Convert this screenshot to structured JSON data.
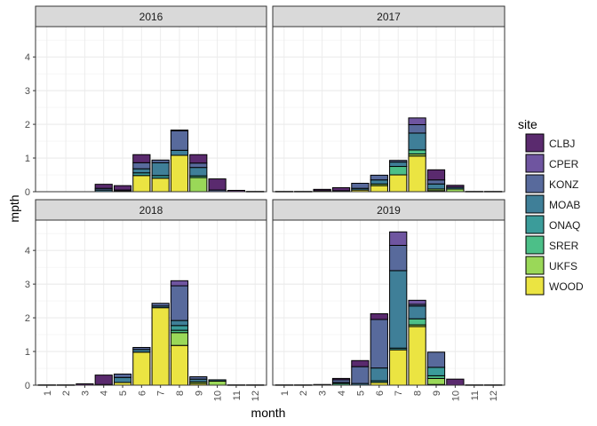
{
  "chart_data": {
    "type": "bar",
    "stacked": true,
    "facet_layout": "2x2",
    "xlabel": "month",
    "ylabel": "mpth",
    "ylim": [
      0,
      4.9
    ],
    "yticks": [
      0,
      1,
      2,
      3,
      4
    ],
    "categories": [
      "1",
      "2",
      "3",
      "4",
      "5",
      "6",
      "7",
      "8",
      "9",
      "10",
      "11",
      "12"
    ],
    "grid": true,
    "legend": {
      "title": "site",
      "position": "right",
      "entries": [
        "CLBJ",
        "CPER",
        "KONZ",
        "MOAB",
        "ONAQ",
        "SRER",
        "UKFS",
        "WOOD"
      ]
    },
    "colors": {
      "CLBJ": "#5a2a6e",
      "CPER": "#6f55a0",
      "KONZ": "#586a9c",
      "MOAB": "#3f7f98",
      "ONAQ": "#3b9c9a",
      "SRER": "#4cbf88",
      "UKFS": "#9ad858",
      "WOOD": "#ebe442"
    },
    "panels": [
      {
        "title": "2016",
        "stacks": {
          "4": {
            "KONZ": 0.05,
            "MOAB": 0.05,
            "CLBJ": 0.12
          },
          "5": {
            "WOOD": 0.02,
            "CPER": 0.03,
            "CLBJ": 0.13
          },
          "6": {
            "WOOD": 0.48,
            "ONAQ": 0.08,
            "MOAB": 0.12,
            "KONZ": 0.18,
            "CLBJ": 0.24
          },
          "7": {
            "WOOD": 0.4,
            "ONAQ": 0.08,
            "MOAB": 0.38,
            "KONZ": 0.08
          },
          "8": {
            "WOOD": 1.08,
            "MOAB": 0.15,
            "KONZ": 0.58,
            "CPER": 0.02
          },
          "9": {
            "UKFS": 0.42,
            "SRER": 0.05,
            "MOAB": 0.25,
            "KONZ": 0.13,
            "CLBJ": 0.25
          },
          "10": {
            "KONZ": 0.05,
            "CLBJ": 0.33
          },
          "11": {
            "CLBJ": 0.04
          },
          "12": {
            "CLBJ": 0.01
          }
        }
      },
      {
        "title": "2017",
        "stacks": {
          "1": {
            "CLBJ": 0.01
          },
          "2": {
            "CLBJ": 0.01
          },
          "3": {
            "WOOD": 0.03,
            "CLBJ": 0.04
          },
          "4": {
            "KONZ": 0.03,
            "CLBJ": 0.09
          },
          "5": {
            "WOOD": 0.05,
            "MOAB": 0.05,
            "KONZ": 0.15
          },
          "6": {
            "WOOD": 0.18,
            "UKFS": 0.05,
            "MOAB": 0.12,
            "KONZ": 0.14
          },
          "7": {
            "WOOD": 0.5,
            "SRER": 0.25,
            "MOAB": 0.13,
            "KONZ": 0.05
          },
          "8": {
            "WOOD": 1.06,
            "UKFS": 0.06,
            "SRER": 0.12,
            "MOAB": 0.5,
            "KONZ": 0.25,
            "CPER": 0.2
          },
          "9": {
            "WOOD": 0.03,
            "UKFS": 0.05,
            "MOAB": 0.15,
            "KONZ": 0.12,
            "CLBJ": 0.3
          },
          "10": {
            "UKFS": 0.08,
            "MOAB": 0.05,
            "CLBJ": 0.06
          },
          "11": {
            "CLBJ": 0.01
          },
          "12": {
            "CLBJ": 0.01
          }
        }
      },
      {
        "title": "2018",
        "stacks": {
          "1": {
            "CLBJ": 0.01
          },
          "2": {
            "CLBJ": 0.01
          },
          "3": {
            "CLBJ": 0.04
          },
          "4": {
            "WOOD": 0.02,
            "CLBJ": 0.28
          },
          "5": {
            "WOOD": 0.08,
            "MOAB": 0.15,
            "KONZ": 0.1
          },
          "6": {
            "WOOD": 0.98,
            "MOAB": 0.08,
            "KONZ": 0.06
          },
          "7": {
            "WOOD": 2.3,
            "MOAB": 0.05,
            "KONZ": 0.08
          },
          "8": {
            "WOOD": 1.18,
            "UKFS": 0.38,
            "SRER": 0.07,
            "ONAQ": 0.14,
            "MOAB": 0.15,
            "KONZ": 1.03,
            "CPER": 0.15
          },
          "9": {
            "WOOD": 0.05,
            "UKFS": 0.05,
            "MOAB": 0.08,
            "KONZ": 0.07
          },
          "10": {
            "UKFS": 0.12,
            "MOAB": 0.04
          },
          "11": {
            "CLBJ": 0.01
          },
          "12": {
            "CLBJ": 0.01
          }
        }
      },
      {
        "title": "2019",
        "stacks": {
          "1": {
            "CLBJ": 0.01
          },
          "2": {
            "CLBJ": 0.01
          },
          "3": {
            "CLBJ": 0.02
          },
          "4": {
            "SRER": 0.05,
            "MOAB": 0.03,
            "KONZ": 0.08,
            "CLBJ": 0.04
          },
          "5": {
            "MOAB": 0.05,
            "KONZ": 0.5,
            "CLBJ": 0.18
          },
          "6": {
            "WOOD": 0.08,
            "ONAQ": 0.05,
            "MOAB": 0.38,
            "KONZ": 1.44,
            "CLBJ": 0.17
          },
          "7": {
            "WOOD": 1.05,
            "ONAQ": 0.05,
            "MOAB": 2.3,
            "KONZ": 0.75,
            "CPER": 0.4
          },
          "8": {
            "WOOD": 1.74,
            "UKFS": 0.05,
            "SRER": 0.18,
            "MOAB": 0.38,
            "KONZ": 0.05,
            "CPER": 0.12
          },
          "9": {
            "WOOD": 0.02,
            "UKFS": 0.18,
            "SRER": 0.08,
            "ONAQ": 0.25,
            "KONZ": 0.45
          },
          "10": {
            "CLBJ": 0.18
          },
          "11": {
            "CLBJ": 0.01
          },
          "12": {
            "CLBJ": 0.01
          }
        }
      }
    ]
  }
}
